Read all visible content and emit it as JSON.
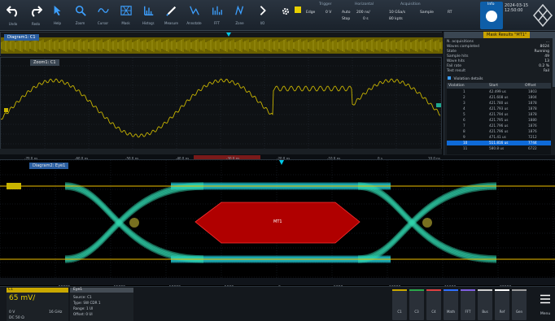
{
  "toolbar": {
    "buttons": [
      {
        "id": "undo",
        "label": "Undo",
        "icon": "undo-icon"
      },
      {
        "id": "redo",
        "label": "Redo",
        "icon": "redo-icon"
      },
      {
        "id": "help",
        "label": "Help",
        "icon": "pointer-help-icon"
      },
      {
        "id": "zoom",
        "label": "Zoom",
        "icon": "magnifier-icon"
      },
      {
        "id": "cursor",
        "label": "Cursor",
        "icon": "cursor-icon"
      },
      {
        "id": "mask",
        "label": "Mask",
        "icon": "mask-icon"
      },
      {
        "id": "histogram",
        "label": "Histogr.",
        "icon": "histogram-icon"
      },
      {
        "id": "measure",
        "label": "Measure",
        "icon": "ruler-icon"
      },
      {
        "id": "annotate",
        "label": "Annotate",
        "icon": "pen-icon"
      },
      {
        "id": "fft",
        "label": "FFT",
        "icon": "fft-icon"
      },
      {
        "id": "zone",
        "label": "Zone",
        "icon": "zone-icon"
      },
      {
        "id": "more",
        "label": "I/O",
        "icon": "chevron-right-icon"
      }
    ],
    "trigger": {
      "title": "Trigger",
      "edge": "Edge",
      "level": "0 V",
      "mode": "Auto",
      "stop": "Stop"
    },
    "horizontal": {
      "title": "Horizontal",
      "scale": "200 ns/",
      "pos": "0 s"
    },
    "acquisition": {
      "title": "Acquisition",
      "rate": "10 GSa/s",
      "points": "80 kpts",
      "sample": "Sample",
      "rbw": "RT"
    },
    "info_label": "Info",
    "date": "2024-03-15",
    "time": "12:50:00"
  },
  "overview": {
    "title": "Diagram1: C1"
  },
  "zoom": {
    "title": "Zoom1: C1",
    "axis_labels": [
      "-70.0 ns",
      "-60.0 ns",
      "-50.0 ns",
      "-40.0 ns",
      "-30.0 ns",
      "-20.0 ns",
      "-10.0 ns",
      "0 s",
      "10.0 ns"
    ]
  },
  "results": {
    "title": "Mask Results \"MT1\"",
    "rows": [
      {
        "k": "N. acquisitions",
        "v": "..."
      },
      {
        "k": "Waves completed",
        "v": "8024"
      },
      {
        "k": "State",
        "v": "Running"
      },
      {
        "k": "Sample hits",
        "v": "49"
      },
      {
        "k": "Wave hits",
        "v": "13"
      },
      {
        "k": "Fail rate",
        "v": "0.2 %"
      },
      {
        "k": "Test result",
        "v": "Fail"
      }
    ],
    "checkbox": "Violation details",
    "viol_headers": [
      "Violation",
      "Start",
      "Offset"
    ],
    "violations": [
      [
        "1",
        "42.499 us",
        "1803"
      ],
      [
        "2",
        "421.608 us",
        "1804"
      ],
      [
        "3",
        "421.780 us",
        "1878"
      ],
      [
        "4",
        "421.793 us",
        "1878"
      ],
      [
        "5",
        "421.794 us",
        "1878"
      ],
      [
        "6",
        "421.795 us",
        "1880"
      ],
      [
        "7",
        "421.796 us",
        "1876"
      ],
      [
        "8",
        "421.796 us",
        "1876"
      ],
      [
        "9",
        "471.41 us",
        "7212"
      ],
      [
        "10",
        "511.816 us",
        "7744"
      ],
      [
        "11",
        "580.8 us",
        "6722"
      ]
    ]
  },
  "eye": {
    "title": "Diagram2: Eye1",
    "mask_label": "MT1",
    "axis_labels": [
      "-20000",
      "-15000",
      "-10000",
      "-5000",
      "0",
      "5000",
      "10000",
      "15000",
      "20000"
    ]
  },
  "bottom": {
    "channel": {
      "name": "C1",
      "scale": "65 mV/",
      "offset": "0 V",
      "bw": "16 GHz",
      "coupling": "DC 50 Ω"
    },
    "eye_info": {
      "title": "Eye1",
      "source": "Source: C1",
      "type": "Type: SW CDR 1",
      "range": "Range: 1 UI",
      "offset": "Offset: 0 UI"
    },
    "side_buttons": [
      {
        "label": "C1",
        "color": "#c9a800"
      },
      {
        "label": "C3",
        "color": "#2aa84a"
      },
      {
        "label": "C4",
        "color": "#e04040"
      },
      {
        "label": "Math",
        "color": "#3070ff"
      },
      {
        "label": "FFT",
        "color": "#8060e0"
      },
      {
        "label": "Bus",
        "color": "#d0d0d0"
      },
      {
        "label": "Ref",
        "color": "#ffffff"
      },
      {
        "label": "Gen",
        "color": "#a0a0a0"
      }
    ],
    "menu": "Menu"
  }
}
